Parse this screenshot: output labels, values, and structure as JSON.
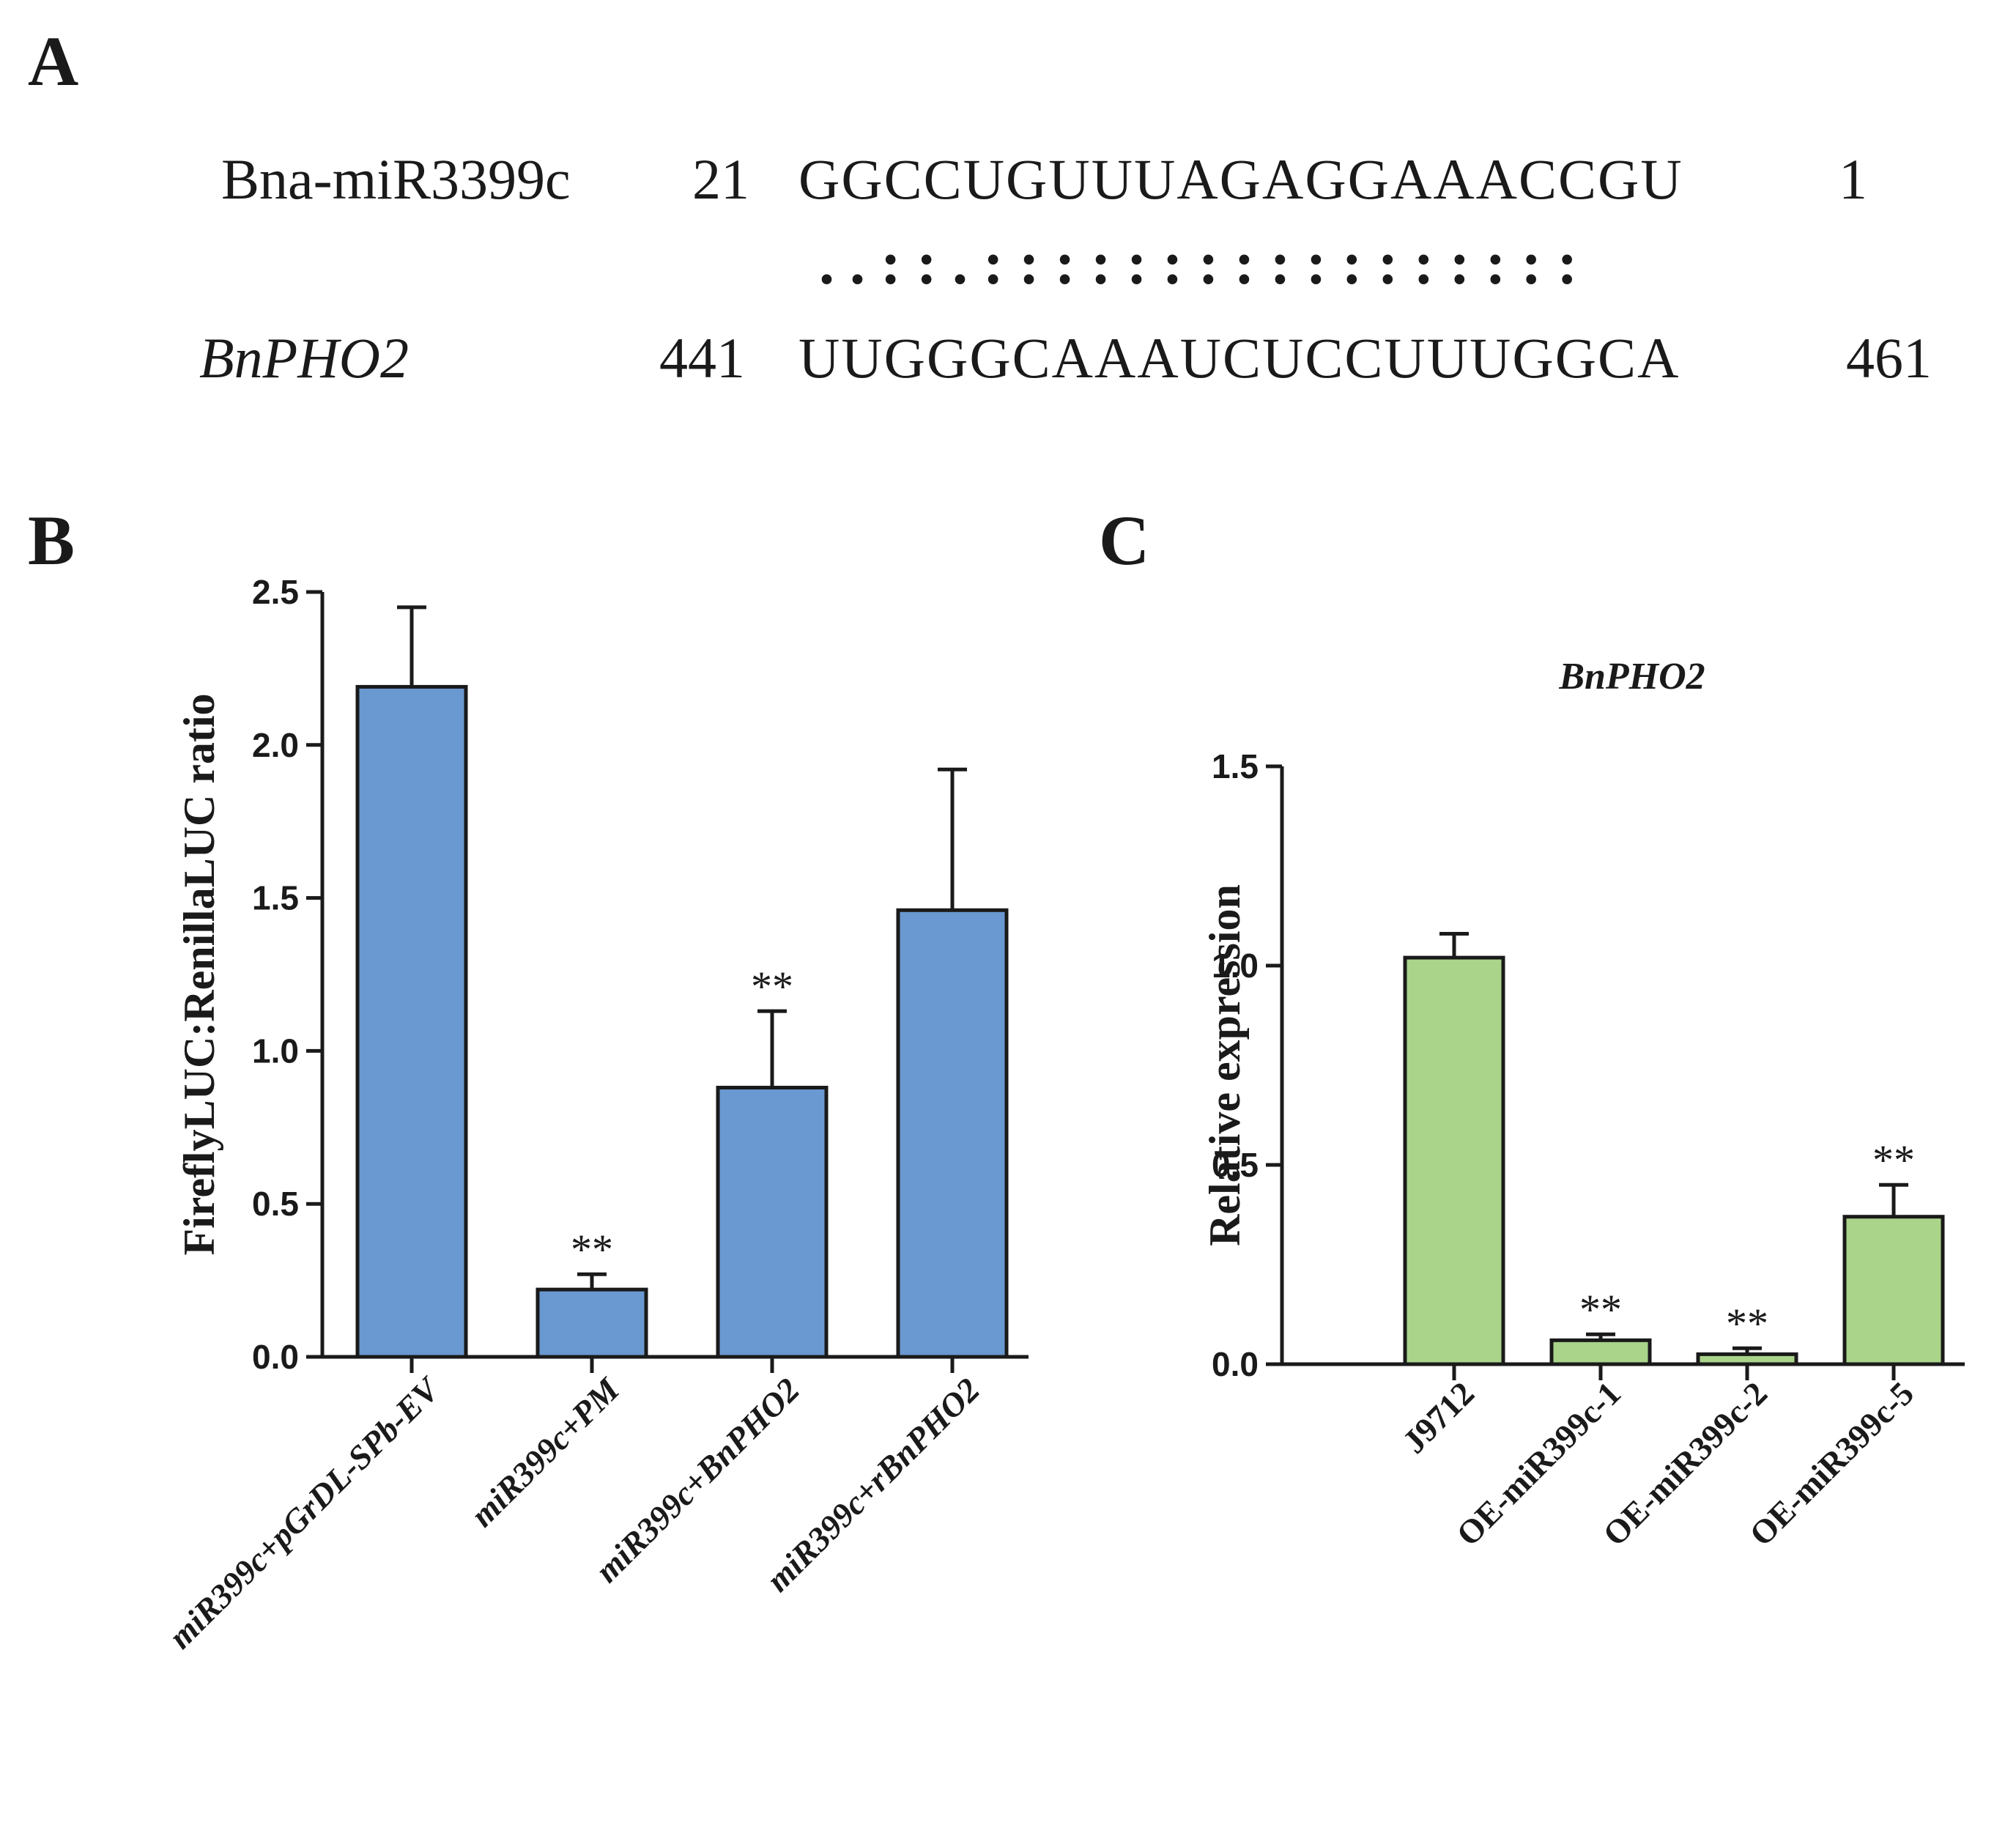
{
  "panels": {
    "a": "A",
    "b": "B",
    "c": "C"
  },
  "alignment": {
    "mirna": {
      "name": "Bna-miR3399c",
      "start": "21",
      "sequence": "GGCCUGUUUAGAGGAAACCGU",
      "end": "1"
    },
    "pairing": ". . : : . : : : : : : : : : : : : : : : : :",
    "target": {
      "name": "BnPHO2",
      "start": "441",
      "sequence": "UUGGGCAAAUCUCCUUUGGCA",
      "end": "461"
    }
  },
  "chart_data": [
    {
      "type": "bar",
      "panel": "B",
      "ylabel": "FireflyLUC:RenillaLUC ratio",
      "xlabel": "",
      "ylim": [
        0,
        2.5
      ],
      "yticks": [
        "0.0",
        "0.5",
        "1.0",
        "1.5",
        "2.0",
        "2.5"
      ],
      "categories": [
        "miR399c+pGrDL-SPb-EV",
        "miR399c+PM",
        "miR399c+BnPHO2",
        "miR399c+rBnPHO2"
      ],
      "values": [
        2.19,
        0.22,
        0.88,
        1.46
      ],
      "errors": [
        0.26,
        0.05,
        0.25,
        0.46
      ],
      "significance": [
        "",
        "**",
        "**",
        ""
      ],
      "color": "#6a98d0"
    },
    {
      "type": "bar",
      "panel": "C",
      "title": "BnPHO2",
      "ylabel": "Relative expression",
      "xlabel": "",
      "ylim": [
        0,
        1.5
      ],
      "yticks": [
        "0.0",
        "0.5",
        "1.0",
        "1.5"
      ],
      "categories": [
        "J9712",
        "OE-miR399c-1",
        "OE-miR399c-2",
        "OE-miR399c-5"
      ],
      "values": [
        1.02,
        0.06,
        0.025,
        0.37
      ],
      "errors": [
        0.06,
        0.015,
        0.015,
        0.08
      ],
      "significance": [
        "",
        "**",
        "**",
        "**"
      ],
      "color": "#a9d48a"
    }
  ]
}
